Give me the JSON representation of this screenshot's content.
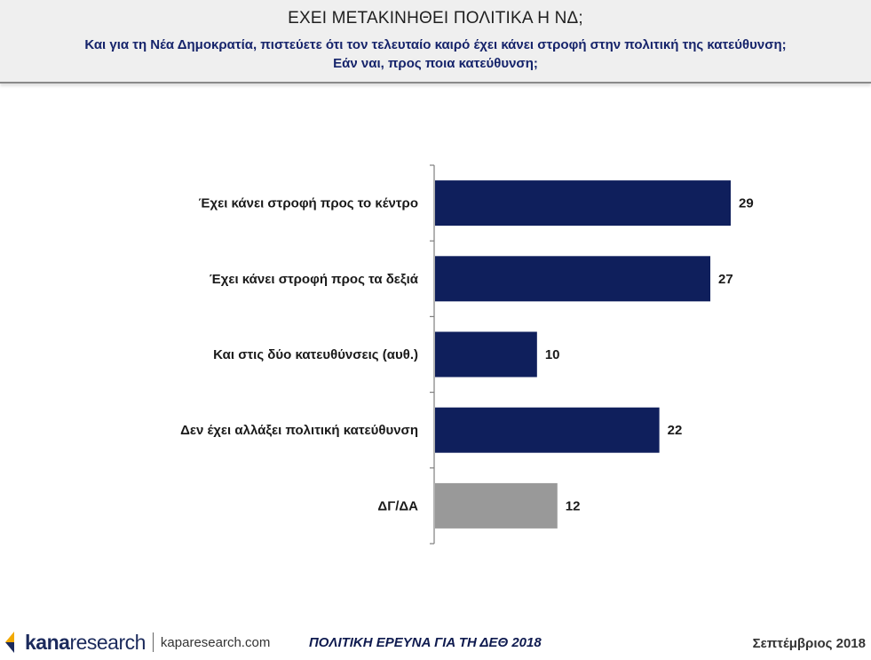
{
  "header": {
    "title": "ΕΧΕΙ ΜΕΤΑΚΙΝΗΘΕΙ ΠΟΛΙΤΙΚΑ Η ΝΔ;",
    "subtitle_line1": "Και για τη Νέα Δημοκρατία, πιστεύετε ότι τον τελευταίο καιρό έχει κάνει στροφή στην πολιτική της κατεύθυνση;",
    "subtitle_line2": "Εάν ναι, προς ποια κατεύθυνση;"
  },
  "chart_data": {
    "type": "bar",
    "orientation": "horizontal",
    "categories": [
      "Έχει κάνει στροφή προς το κέντρο",
      "Έχει κάνει στροφή προς τα δεξιά",
      "Και στις δύο κατευθύνσεις (αυθ.)",
      "Δεν έχει αλλάξει πολιτική κατεύθυνση",
      "ΔΓ/ΔΑ"
    ],
    "values": [
      29,
      27,
      10,
      22,
      12
    ],
    "colors": [
      "#0f1f5c",
      "#0f1f5c",
      "#0f1f5c",
      "#0f1f5c",
      "#999999"
    ],
    "xlim": [
      0,
      38
    ],
    "title": "ΕΧΕΙ ΜΕΤΑΚΙΝΗΘΕΙ ΠΟΛΙΤΙΚΑ Η ΝΔ;",
    "xlabel": "",
    "ylabel": "",
    "grid": false
  },
  "footer": {
    "logo_kana": "kana",
    "logo_research": "research",
    "logo_url": "kaparesearch.com",
    "center_text": "ΠΟΛΙΤΙΚΗ ΕΡΕΥΝΑ ΓΙΑ ΤΗ ΔΕΘ 2018",
    "date": "Σεπτέμβριος 2018"
  },
  "colors": {
    "bar_primary": "#0f1f5c",
    "bar_secondary": "#999999",
    "subtitle": "#16246b"
  }
}
